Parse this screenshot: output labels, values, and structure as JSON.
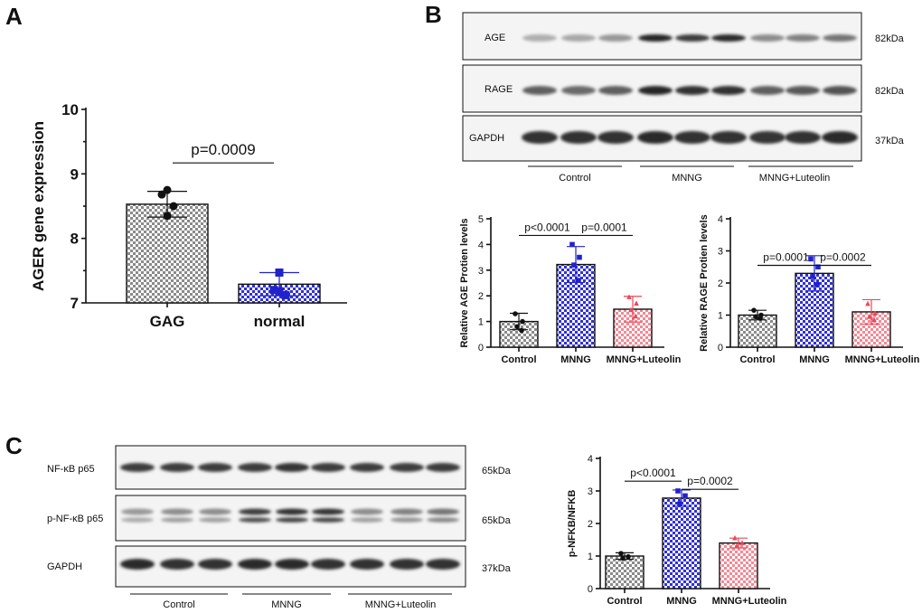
{
  "panels": {
    "a": "A",
    "b": "B",
    "c": "C"
  },
  "colors": {
    "grey": "#888888",
    "blue": "#2a2ad6",
    "red": "#e84a5a",
    "black": "#111111"
  },
  "chart_data": [
    {
      "id": "A",
      "type": "bar",
      "title": "",
      "ylabel": "AGER gene expression",
      "categories": [
        "GAG",
        "normal"
      ],
      "values": [
        8.53,
        7.29
      ],
      "errors": [
        0.2,
        0.18
      ],
      "points": [
        [
          8.75,
          8.68,
          8.5,
          8.35
        ],
        [
          7.47,
          7.2,
          7.12,
          7.18
        ]
      ],
      "ylim": [
        7,
        10
      ],
      "yticks": [
        "7",
        "8",
        "9",
        "10"
      ],
      "yticks_values": [
        7,
        8,
        9,
        10
      ],
      "patterns": [
        "grey",
        "blue"
      ],
      "pvalues": [
        {
          "label": "p=0.0009",
          "from": 0,
          "to": 1,
          "y": 9.17
        }
      ]
    },
    {
      "id": "B1",
      "type": "bar",
      "ylabel": "Relative AGE Protien levels",
      "categories": [
        "Control",
        "MNNG",
        "MNNG+Luteolin"
      ],
      "values": [
        1.0,
        3.22,
        1.48
      ],
      "errors": [
        0.32,
        0.7,
        0.5
      ],
      "points": [
        [
          1.3,
          1.0,
          0.8,
          0.65
        ],
        [
          4.0,
          3.5,
          3.2,
          2.6
        ],
        [
          1.95,
          1.7,
          1.45,
          1.2
        ]
      ],
      "ylim": [
        0,
        5
      ],
      "yticks": [
        "0",
        "1",
        "2",
        "3",
        "4",
        "5"
      ],
      "yticks_values": [
        0,
        1,
        2,
        3,
        4,
        5
      ],
      "patterns": [
        "grey",
        "blue",
        "red"
      ],
      "pvalues": [
        {
          "label": "p<0.0001",
          "from": 0,
          "to": 1,
          "y": 4.35
        },
        {
          "label": "p=0.0001",
          "from": 1,
          "to": 2,
          "y": 4.35
        }
      ]
    },
    {
      "id": "B2",
      "type": "bar",
      "ylabel": "Relative RAGE Protien levels",
      "categories": [
        "Control",
        "MNNG",
        "MNNG+Luteolin"
      ],
      "values": [
        1.0,
        2.3,
        1.1
      ],
      "errors": [
        0.15,
        0.55,
        0.38
      ],
      "points": [
        [
          1.15,
          1.0,
          0.95,
          0.9
        ],
        [
          2.75,
          2.5,
          2.2,
          1.95
        ],
        [
          1.35,
          1.05,
          0.95,
          0.85
        ]
      ],
      "ylim": [
        0,
        4
      ],
      "yticks": [
        "0",
        "1",
        "2",
        "3",
        "4"
      ],
      "yticks_values": [
        0,
        1,
        2,
        3,
        4
      ],
      "patterns": [
        "grey",
        "blue",
        "red"
      ],
      "pvalues": [
        {
          "label": "p=0.0001",
          "from": 0,
          "to": 1,
          "y": 2.55
        },
        {
          "label": "p=0.0002",
          "from": 1,
          "to": 2,
          "y": 2.55
        }
      ]
    },
    {
      "id": "C",
      "type": "bar",
      "ylabel": "p-NFKB/NFKB",
      "categories": [
        "Control",
        "MNNG",
        "MNNG+Luteolin"
      ],
      "values": [
        1.0,
        2.78,
        1.4
      ],
      "errors": [
        0.1,
        0.25,
        0.15
      ],
      "points": [
        [
          1.08,
          0.98,
          0.93
        ],
        [
          3.0,
          2.85,
          2.6
        ],
        [
          1.55,
          1.4,
          1.3
        ]
      ],
      "ylim": [
        0,
        4
      ],
      "yticks": [
        "0",
        "1",
        "2",
        "3",
        "4"
      ],
      "yticks_values": [
        0,
        1,
        2,
        3,
        4
      ],
      "patterns": [
        "grey",
        "blue",
        "red"
      ],
      "pvalues": [
        {
          "label": "p<0.0001",
          "from": 0,
          "to": 1,
          "y": 3.3
        },
        {
          "label": "p=0.0002",
          "from": 1,
          "to": 2,
          "y": 3.05
        }
      ]
    }
  ],
  "blot_b": {
    "rows": [
      "AGE",
      "RAGE",
      "GAPDH"
    ],
    "kda": [
      "82kDa",
      "82kDa",
      "37kDa"
    ],
    "groups": [
      "Control",
      "MNNG",
      "MNNG+Luteolin"
    ]
  },
  "blot_c": {
    "rows": [
      "NF-κB p65",
      "p-NF-κB p65",
      "GAPDH"
    ],
    "kda": [
      "65kDa",
      "65kDa",
      "37kDa"
    ],
    "groups": [
      "Control",
      "MNNG",
      "MNNG+Luteolin"
    ]
  }
}
